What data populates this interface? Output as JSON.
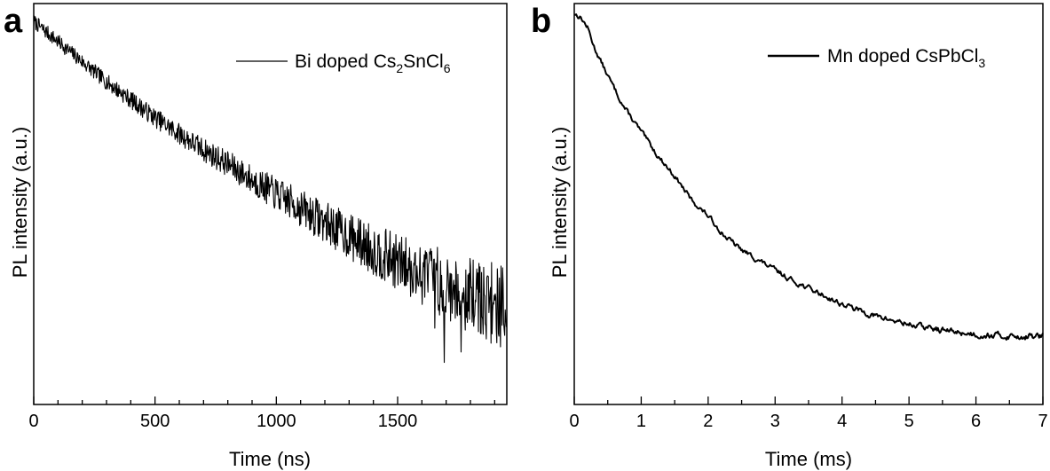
{
  "chart_data": [
    {
      "panel_label": "a",
      "type": "line",
      "xlabel": "Time (ns)",
      "ylabel": "PL intensity (a.u.)",
      "xlim": [
        0,
        1950
      ],
      "ylim": [
        0,
        1
      ],
      "xticks": [
        0,
        500,
        1000,
        1500
      ],
      "legend": {
        "base": "Bi doped Cs",
        "sub1": "2",
        "mid": "SnCl",
        "sub2": "6",
        "position": "top-right"
      },
      "series": [
        {
          "x": [
            0,
            100,
            200,
            300,
            400,
            500,
            600,
            700,
            800,
            900,
            1000,
            1100,
            1200,
            1300,
            1400,
            1500,
            1600,
            1700,
            1800,
            1900,
            1950
          ],
          "y": [
            0.955,
            0.905,
            0.855,
            0.805,
            0.76,
            0.715,
            0.675,
            0.635,
            0.6,
            0.56,
            0.525,
            0.49,
            0.455,
            0.42,
            0.385,
            0.355,
            0.325,
            0.3,
            0.27,
            0.25,
            0.24
          ]
        }
      ]
    },
    {
      "panel_label": "b",
      "type": "line",
      "xlabel": "Time (ms)",
      "ylabel": "PL intensity (a.u.)",
      "xlim": [
        0,
        7
      ],
      "ylim": [
        0,
        1
      ],
      "xticks": [
        0,
        1,
        2,
        3,
        4,
        5,
        6,
        7
      ],
      "legend": {
        "base": "Mn doped CsPbCl",
        "sub1": "3",
        "position": "top-right"
      },
      "series": [
        {
          "x": [
            0,
            0.1,
            0.2,
            0.3,
            0.5,
            0.75,
            1,
            1.25,
            1.5,
            1.75,
            2,
            2.25,
            2.5,
            2.75,
            3,
            3.25,
            3.5,
            4,
            4.5,
            5,
            5.5,
            6,
            6.5,
            7
          ],
          "y": [
            0.975,
            0.965,
            0.94,
            0.89,
            0.82,
            0.74,
            0.68,
            0.62,
            0.57,
            0.51,
            0.47,
            0.42,
            0.385,
            0.36,
            0.335,
            0.31,
            0.29,
            0.25,
            0.22,
            0.2,
            0.185,
            0.175,
            0.17,
            0.17
          ]
        }
      ]
    }
  ]
}
